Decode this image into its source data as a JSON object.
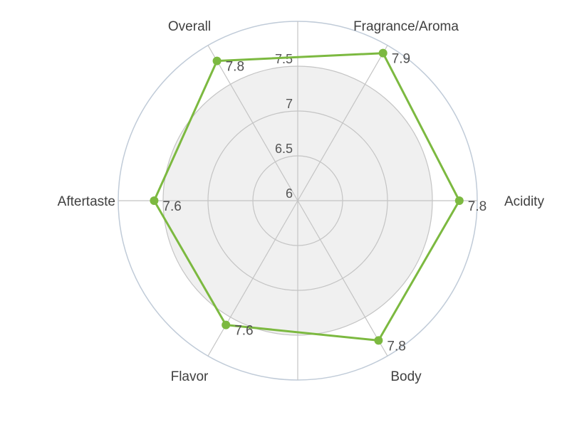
{
  "chart_data": {
    "type": "radar",
    "title": "",
    "axes": [
      "Fragrance/Aroma",
      "Acidity",
      "Body",
      "Flavor",
      "Aftertaste",
      "Overall"
    ],
    "ticks": [
      6,
      6.5,
      7,
      7.5
    ],
    "tick_labels": [
      "6",
      "6.5",
      "7",
      "7.5"
    ],
    "range": [
      6,
      8
    ],
    "band": [
      6.5,
      7.5
    ],
    "grid": true,
    "legend": "none",
    "series": [
      {
        "values": [
          7.9,
          7.8,
          7.8,
          7.6,
          7.6,
          7.8
        ],
        "labels": [
          "7.9",
          "7.8",
          "7.8",
          "7.6",
          "7.6",
          "7.8"
        ],
        "color": "#7cb940"
      }
    ],
    "colors": {
      "series": "#7cb940",
      "grid": "#c4c4c4",
      "outer_ring": "#c0cbd8",
      "band_fill": "#f0f0f0"
    }
  }
}
